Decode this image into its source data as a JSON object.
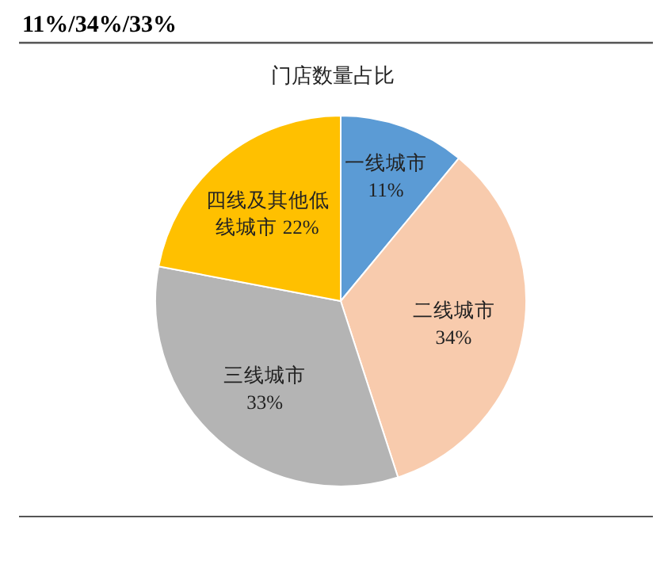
{
  "chart_data": {
    "type": "pie",
    "title": "门店数量占比",
    "annotations": [
      "11%/34%/33%"
    ],
    "categories": [
      "一线城市",
      "二线城市",
      "三线城市",
      "四线及其他低线城市"
    ],
    "values": [
      11,
      34,
      33,
      22
    ],
    "value_labels": [
      "11%",
      "34%",
      "33%",
      "22%"
    ],
    "colors": [
      "#5b9bd5",
      "#f8cbad",
      "#b4b4b4",
      "#ffc000"
    ]
  }
}
